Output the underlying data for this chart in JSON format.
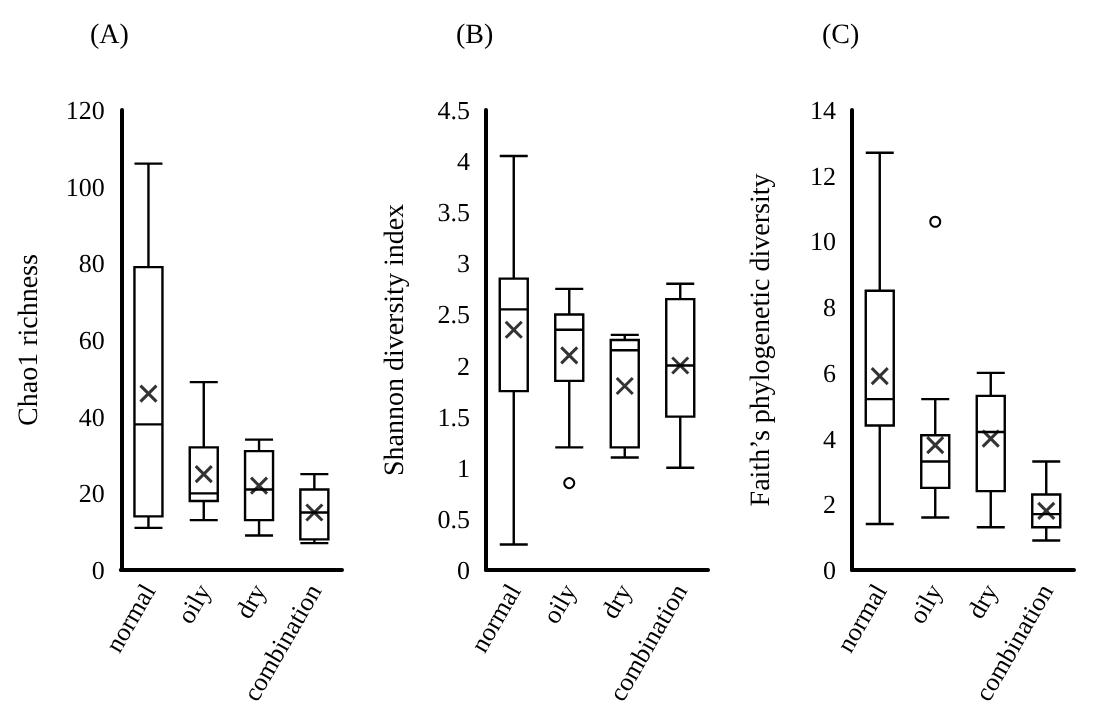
{
  "chart_data": [
    {
      "type": "box",
      "title": "(A)",
      "ylabel": "Chao1 richness",
      "categories": [
        "normal",
        "oily",
        "dry",
        "combination"
      ],
      "ylim": [
        0,
        120
      ],
      "yticks": [
        0,
        20,
        40,
        60,
        80,
        100,
        120
      ],
      "grid": false,
      "series": [
        {
          "color": "#000000",
          "boxes": [
            {
              "low": 11,
              "q1": 14,
              "median": 38,
              "q3": 79,
              "high": 106,
              "mean": 46
            },
            {
              "low": 13,
              "q1": 18,
              "median": 20,
              "q3": 32,
              "high": 49,
              "mean": 25
            },
            {
              "low": 9,
              "q1": 13,
              "median": 21,
              "q3": 31,
              "high": 34,
              "mean": 22
            },
            {
              "low": 7,
              "q1": 8,
              "median": 15,
              "q3": 21,
              "high": 25,
              "mean": 15
            }
          ]
        }
      ]
    },
    {
      "type": "box",
      "title": "(B)",
      "ylabel": "Shannon diversity index",
      "categories": [
        "normal",
        "oily",
        "dry",
        "combination"
      ],
      "ylim": [
        0,
        4.5
      ],
      "yticks": [
        0,
        0.5,
        1,
        1.5,
        2,
        2.5,
        3,
        3.5,
        4,
        4.5
      ],
      "grid": false,
      "series": [
        {
          "color": "#000000",
          "boxes": [
            {
              "low": 0.25,
              "q1": 1.75,
              "median": 2.55,
              "q3": 2.85,
              "high": 4.05,
              "mean": 2.35
            },
            {
              "low": 1.2,
              "q1": 1.85,
              "median": 2.35,
              "q3": 2.5,
              "high": 2.75,
              "mean": 2.1,
              "outliers": [
                0.85
              ]
            },
            {
              "low": 1.1,
              "q1": 1.2,
              "median": 2.15,
              "q3": 2.25,
              "high": 2.3,
              "mean": 1.8
            },
            {
              "low": 1.0,
              "q1": 1.5,
              "median": 2.0,
              "q3": 2.65,
              "high": 2.8,
              "mean": 2.0
            }
          ]
        }
      ]
    },
    {
      "type": "box",
      "title": "(C)",
      "ylabel": "Faith’s phylogenetic diversity",
      "categories": [
        "normal",
        "oily",
        "dry",
        "combination"
      ],
      "ylim": [
        0,
        14
      ],
      "yticks": [
        0,
        2,
        4,
        6,
        8,
        10,
        12,
        14
      ],
      "grid": false,
      "series": [
        {
          "color": "#000000",
          "boxes": [
            {
              "low": 1.4,
              "q1": 4.4,
              "median": 5.2,
              "q3": 8.5,
              "high": 12.7,
              "mean": 5.9
            },
            {
              "low": 1.6,
              "q1": 2.5,
              "median": 3.3,
              "q3": 4.1,
              "high": 5.2,
              "mean": 3.8,
              "outliers": [
                10.6
              ]
            },
            {
              "low": 1.3,
              "q1": 2.4,
              "median": 4.2,
              "q3": 5.3,
              "high": 6.0,
              "mean": 4.0
            },
            {
              "low": 0.9,
              "q1": 1.3,
              "median": 1.7,
              "q3": 2.3,
              "high": 3.3,
              "mean": 1.8
            }
          ]
        }
      ]
    }
  ]
}
